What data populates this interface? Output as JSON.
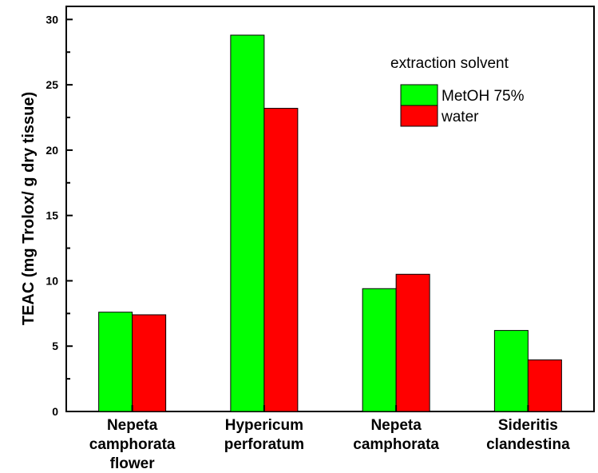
{
  "chart_data": {
    "type": "bar",
    "categories": [
      [
        "Nepeta",
        "camphorata",
        "flower"
      ],
      [
        "Hypericum",
        "perforatum"
      ],
      [
        "Nepeta",
        "camphorata"
      ],
      [
        "Sideritis",
        "clandestina"
      ]
    ],
    "series": [
      {
        "name": "MetOH 75%",
        "color": "#00ff00",
        "values": [
          7.6,
          28.8,
          9.4,
          6.2
        ]
      },
      {
        "name": "water",
        "color": "#ff0000",
        "values": [
          7.4,
          23.2,
          10.5,
          3.95
        ]
      }
    ],
    "title": "",
    "xlabel": "",
    "ylabel": "TEAC (mg Trolox/ g dry tissue)",
    "ylim": [
      0,
      31
    ],
    "yticks": [
      0,
      5,
      10,
      15,
      20,
      25,
      30
    ],
    "legend_title": "extraction solvent",
    "legend_position": "top-right",
    "grid": false
  }
}
